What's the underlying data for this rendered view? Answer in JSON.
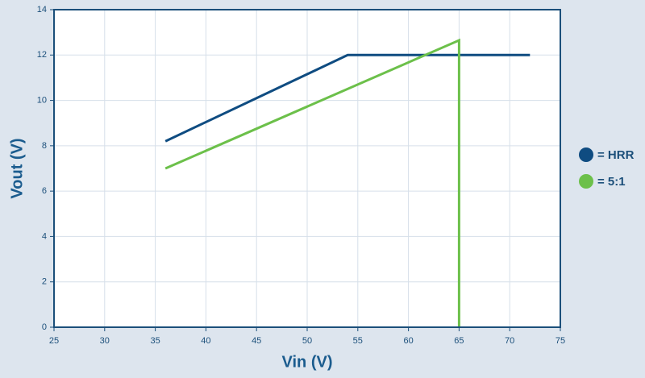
{
  "chart_data": {
    "type": "line",
    "xlabel": "Vin (V)",
    "ylabel": "Vout (V)",
    "xlim": [
      25,
      75
    ],
    "xticks": [
      25,
      30,
      35,
      40,
      45,
      50,
      55,
      60,
      65,
      70,
      75
    ],
    "ylim": [
      0,
      14
    ],
    "yticks": [
      0,
      2,
      4,
      6,
      8,
      10,
      12,
      14
    ],
    "grid": true,
    "legend": "right",
    "series": [
      {
        "name": "= HRR",
        "color": "#0f4c81",
        "x": [
          36,
          54,
          72
        ],
        "values": [
          8.2,
          12,
          12
        ]
      },
      {
        "name": "= 5:1",
        "color": "#6cc04a",
        "x": [
          36,
          65,
          65
        ],
        "values": [
          7.0,
          12.65,
          0
        ]
      }
    ]
  }
}
